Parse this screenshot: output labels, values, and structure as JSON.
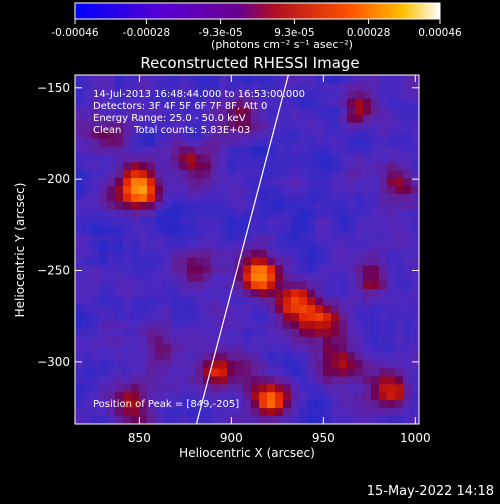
{
  "colorbar": {
    "ticks": [
      "-0.00046",
      "-0.00028",
      "-9.3e-05",
      "9.3e-05",
      "0.00028",
      "0.00046"
    ],
    "tick_values": [
      -0.00046,
      -0.00028,
      -9.3e-05,
      9.3e-05,
      0.00028,
      0.00046
    ],
    "range": [
      -0.00046,
      0.00046
    ],
    "unit_label": "(photons cm⁻² s⁻¹ asec⁻²)",
    "colors": [
      "#0000ff",
      "#6a00c8",
      "#a0101a",
      "#ff3c00",
      "#ffb000",
      "#ffffff"
    ]
  },
  "chart_data": {
    "type": "heatmap",
    "title": "Reconstructed RHESSI Image",
    "xlabel": "Heliocentric X (arcsec)",
    "ylabel": "Heliocentric Y (arcsec)",
    "xlim": [
      815,
      1002
    ],
    "ylim": [
      -334,
      -143
    ],
    "xticks": [
      850,
      900,
      950,
      1000
    ],
    "xtick_labels": [
      "850",
      "900",
      "950",
      "1000"
    ],
    "yticks": [
      -150,
      -200,
      -250,
      -300
    ],
    "ytick_labels": [
      "−150",
      "−200",
      "−250",
      "−300"
    ],
    "limb_line": [
      [
        881,
        -334
      ],
      [
        931,
        -143
      ]
    ],
    "hot_spots": [
      {
        "x": 849,
        "y": -205,
        "intensity": 1.0
      },
      {
        "x": 915,
        "y": -252,
        "intensity": 0.95
      },
      {
        "x": 935,
        "y": -270,
        "intensity": 0.7
      },
      {
        "x": 880,
        "y": -190,
        "intensity": 0.6
      },
      {
        "x": 895,
        "y": -305,
        "intensity": 0.7
      },
      {
        "x": 920,
        "y": -320,
        "intensity": 0.75
      },
      {
        "x": 958,
        "y": -300,
        "intensity": 0.65
      },
      {
        "x": 985,
        "y": -315,
        "intensity": 0.7
      },
      {
        "x": 950,
        "y": -275,
        "intensity": 0.6
      },
      {
        "x": 860,
        "y": -292,
        "intensity": 0.55
      },
      {
        "x": 880,
        "y": -250,
        "intensity": 0.45
      },
      {
        "x": 845,
        "y": -322,
        "intensity": 0.5
      },
      {
        "x": 975,
        "y": -255,
        "intensity": 0.45
      },
      {
        "x": 990,
        "y": -205,
        "intensity": 0.4
      },
      {
        "x": 905,
        "y": -165,
        "intensity": 0.45
      },
      {
        "x": 970,
        "y": -160,
        "intensity": 0.4
      },
      {
        "x": 835,
        "y": -175,
        "intensity": 0.45
      }
    ],
    "annotations": [
      "14-Jul-2013 16:48:44.000 to 16:53:00.000",
      "Detectors: 3F 4F 5F 6F 7F 8F, Att 0",
      "Energy Range: 25.0 - 50.0 keV",
      "Clean    Total counts: 5.83E+03"
    ],
    "peak_label": "Position of Peak = [849,-205]"
  },
  "footer": {
    "timestamp": "15-May-2022 14:18"
  }
}
